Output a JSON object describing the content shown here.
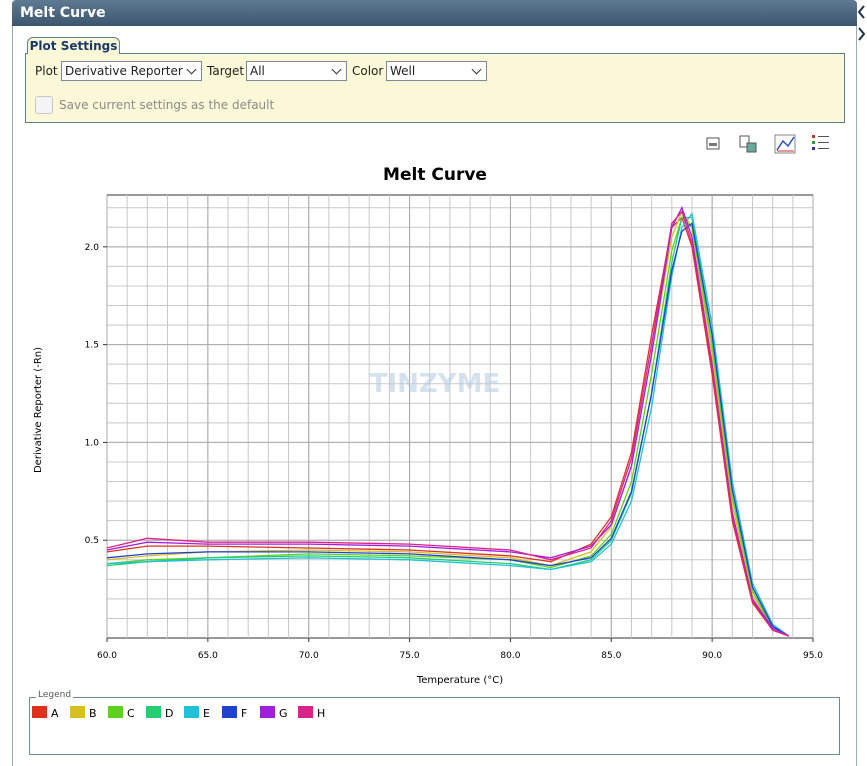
{
  "window": {
    "title": "Melt Curve"
  },
  "plot_settings": {
    "tab": "Plot Settings",
    "plot_label": "Plot",
    "plot_value": "Derivative Reporter",
    "target_label": "Target",
    "target_value": "All",
    "color_label": "Color",
    "color_value": "Well",
    "save_default": "Save current settings as the default"
  },
  "watermark": "TINZYME",
  "legend": {
    "title": "Legend"
  },
  "chart_data": {
    "type": "line",
    "title": "Melt Curve",
    "x_label": "Temperature (°C)",
    "y_label": "Derivative Reporter (-Rn)",
    "x": [
      60,
      62,
      65,
      70,
      75,
      80,
      82,
      84,
      85,
      86,
      87,
      88,
      88.5,
      89,
      90,
      91,
      92,
      93,
      93.8
    ],
    "xlim": [
      60,
      95
    ],
    "xticks": [
      {
        "value": 60,
        "label": "60.0"
      },
      {
        "value": 65,
        "label": "65.0"
      },
      {
        "value": 70,
        "label": "70.0"
      },
      {
        "value": 75,
        "label": "75.0"
      },
      {
        "value": 80,
        "label": "80.0"
      },
      {
        "value": 85,
        "label": "85.0"
      },
      {
        "value": 90,
        "label": "90.0"
      },
      {
        "value": 95,
        "label": "95.0"
      }
    ],
    "ylim": [
      0,
      2.265
    ],
    "yticks": [
      0.5,
      {
        "value": 1,
        "label": "1.0"
      },
      1.5,
      {
        "value": 2,
        "label": "2.0"
      }
    ],
    "grid": true,
    "series": [
      {
        "name": "A",
        "color": "#e0301e",
        "values": [
          0.44,
          0.47,
          0.47,
          0.46,
          0.45,
          0.42,
          0.39,
          0.48,
          0.62,
          0.95,
          1.55,
          2.1,
          2.15,
          2.0,
          1.35,
          0.6,
          0.18,
          0.04,
          0.01
        ]
      },
      {
        "name": "B",
        "color": "#d4c020",
        "values": [
          0.4,
          0.42,
          0.44,
          0.45,
          0.44,
          0.41,
          0.37,
          0.44,
          0.57,
          0.88,
          1.45,
          2.05,
          2.18,
          2.1,
          1.45,
          0.68,
          0.22,
          0.05,
          0.01
        ]
      },
      {
        "name": "C",
        "color": "#60d020",
        "values": [
          0.38,
          0.4,
          0.41,
          0.43,
          0.42,
          0.4,
          0.36,
          0.42,
          0.53,
          0.8,
          1.35,
          1.98,
          2.15,
          2.1,
          1.5,
          0.72,
          0.24,
          0.05,
          0.01
        ]
      },
      {
        "name": "D",
        "color": "#20d070",
        "values": [
          0.37,
          0.39,
          0.41,
          0.42,
          0.41,
          0.38,
          0.35,
          0.4,
          0.5,
          0.74,
          1.25,
          1.92,
          2.15,
          2.15,
          1.55,
          0.76,
          0.26,
          0.06,
          0.01
        ]
      },
      {
        "name": "E",
        "color": "#20c0d8",
        "values": [
          0.38,
          0.39,
          0.4,
          0.41,
          0.4,
          0.37,
          0.35,
          0.39,
          0.48,
          0.7,
          1.18,
          1.85,
          2.1,
          2.17,
          1.6,
          0.8,
          0.28,
          0.07,
          0.01
        ]
      },
      {
        "name": "F",
        "color": "#2040d0",
        "values": [
          0.41,
          0.43,
          0.44,
          0.44,
          0.43,
          0.4,
          0.37,
          0.41,
          0.51,
          0.75,
          1.25,
          1.88,
          2.08,
          2.12,
          1.55,
          0.76,
          0.26,
          0.06,
          0.01
        ]
      },
      {
        "name": "G",
        "color": "#a020e0",
        "values": [
          0.45,
          0.49,
          0.48,
          0.48,
          0.47,
          0.44,
          0.41,
          0.47,
          0.58,
          0.88,
          1.45,
          2.1,
          2.2,
          2.05,
          1.4,
          0.64,
          0.2,
          0.05,
          0.01
        ]
      },
      {
        "name": "H",
        "color": "#e0208a",
        "values": [
          0.46,
          0.51,
          0.49,
          0.49,
          0.48,
          0.45,
          0.4,
          0.46,
          0.6,
          0.92,
          1.5,
          2.12,
          2.18,
          2.02,
          1.38,
          0.62,
          0.19,
          0.04,
          0.01
        ]
      }
    ]
  }
}
